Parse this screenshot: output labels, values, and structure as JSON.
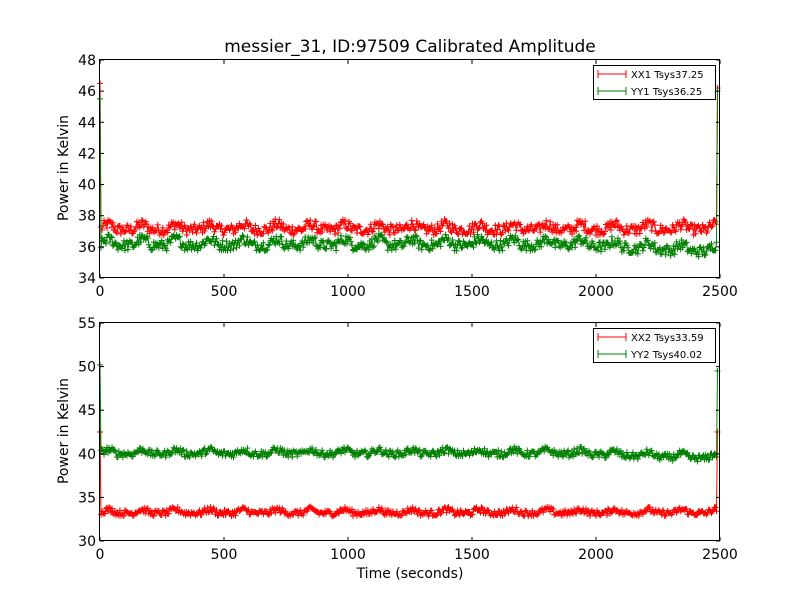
{
  "title": "messier_31, ID:97509 Calibrated Amplitude",
  "chart_data": [
    {
      "type": "line",
      "title": "messier_31, ID:97509 Calibrated Amplitude",
      "xlabel": "",
      "ylabel": "Power in Kelvin",
      "xlim": [
        0,
        2500
      ],
      "ylim": [
        34,
        48
      ],
      "xticks": [
        "0",
        "500",
        "1000",
        "1500",
        "2000",
        "2500"
      ],
      "yticks": [
        "34",
        "36",
        "38",
        "40",
        "42",
        "44",
        "46",
        "48"
      ],
      "legend_position": "top-right",
      "grid": false,
      "series": [
        {
          "name": "XX1 Tsys37.25",
          "color": "#ff0000",
          "marker": "+",
          "baseline": 37.1,
          "noise": 0.35,
          "ripple": 0.35,
          "start_value": 46.5,
          "end_value": 46.2,
          "end_x": 2490
        },
        {
          "name": "YY1 Tsys36.25",
          "color": "#008000",
          "marker": "+",
          "baseline": 36.1,
          "noise": 0.35,
          "ripple": 0.4,
          "start_value": 45.5,
          "end_value": 46.0,
          "end_x": 2490,
          "late_baseline": 35.7
        }
      ]
    },
    {
      "type": "line",
      "title": "",
      "xlabel": "Time (seconds)",
      "ylabel": "Power in Kelvin",
      "xlim": [
        0,
        2500
      ],
      "ylim": [
        30,
        55
      ],
      "xticks": [
        "0",
        "500",
        "1000",
        "1500",
        "2000",
        "2500"
      ],
      "yticks": [
        "30",
        "35",
        "40",
        "45",
        "50",
        "55"
      ],
      "legend_position": "top-right",
      "grid": false,
      "series": [
        {
          "name": "XX2 Tsys33.59",
          "color": "#ff0000",
          "marker": "+",
          "baseline": 33.2,
          "noise": 0.35,
          "ripple": 0.4,
          "start_value": 42.5,
          "end_value": 42.5,
          "end_x": 2490
        },
        {
          "name": "YY2 Tsys40.02",
          "color": "#008000",
          "marker": "+",
          "baseline": 40.0,
          "noise": 0.4,
          "ripple": 0.45,
          "start_value": 50.2,
          "end_value": 49.5,
          "end_x": 2490,
          "late_baseline": 39.5
        }
      ]
    }
  ]
}
